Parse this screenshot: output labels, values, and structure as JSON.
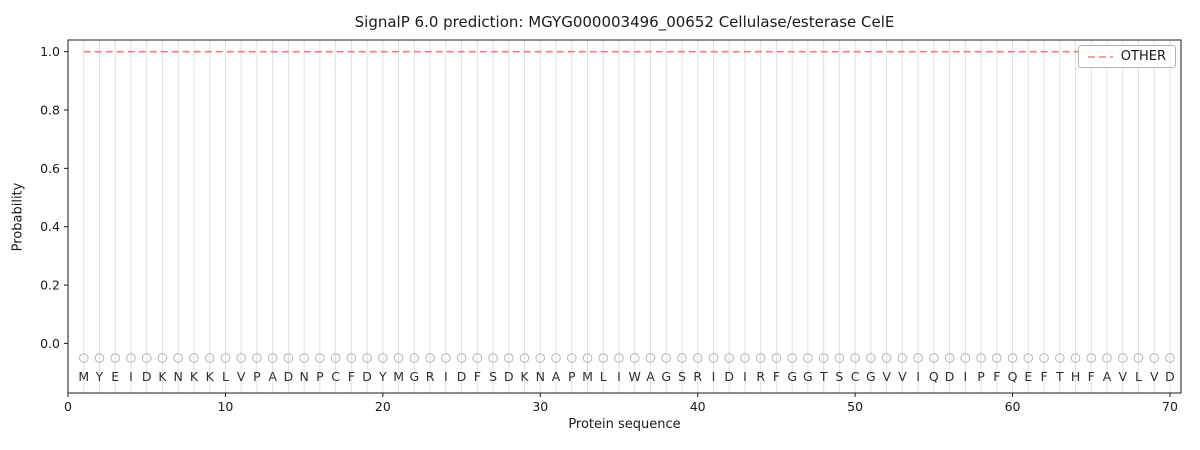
{
  "chart_data": {
    "type": "line",
    "title": "SignalP 6.0 prediction: MGYG000003496_00652 Cellulase/esterase CelE",
    "xlabel": "Protein sequence",
    "ylabel": "Probability",
    "xlim": [
      0,
      70.7
    ],
    "ylim": [
      -0.17,
      1.04
    ],
    "xticks": [
      0,
      10,
      20,
      30,
      40,
      50,
      60,
      70
    ],
    "yticks": [
      0.0,
      0.2,
      0.4,
      0.6,
      0.8,
      1.0
    ],
    "ytick_labels": [
      "0.0",
      "0.2",
      "0.4",
      "0.6",
      "0.8",
      "1.0"
    ],
    "grid": "vertical-line-per-residue",
    "legend_position": "upper right",
    "sequence": "MYEIDKNKKLVPADNPCFDYMGRIDFSDKNAPMLIWAGSRIDIRFGGTSCGVVIQDIPFQEFTHFAVLVD",
    "series": [
      {
        "name": "OTHER",
        "color": "#f37d7d",
        "linestyle": "dashed",
        "x_start": 1,
        "x_end": 70,
        "y_constant": 1.0
      }
    ],
    "residue_markers": {
      "shape": "open-circle",
      "y": -0.05,
      "color": "#bbbbbb"
    },
    "colors": {
      "grid": "#e0e0e0",
      "axis": "#1a1a1a",
      "letters": "#2e2e2e"
    }
  }
}
